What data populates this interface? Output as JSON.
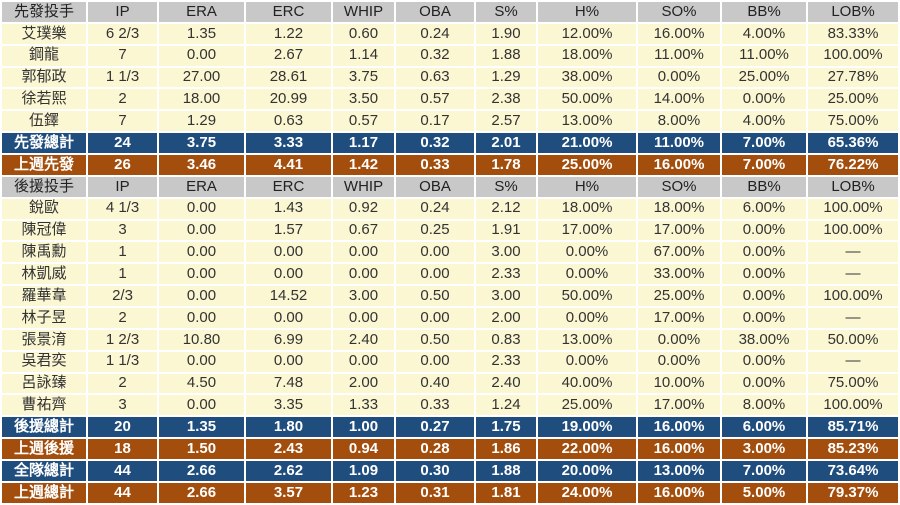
{
  "colors": {
    "header_bg": "#c8c8c8",
    "player_row_bg": "#fbf7d3",
    "total_row_bg": "#1f4d7d",
    "lastweek_row_bg": "#a34e0d",
    "separator": "#ffffff",
    "dark_text": "#333333",
    "light_text": "#ffffff"
  },
  "chart_data": {
    "type": "table",
    "sections": [
      {
        "title": "先發投手",
        "columns": [
          "IP",
          "ERA",
          "ERC",
          "WHIP",
          "OBA",
          "S%",
          "H%",
          "SO%",
          "BB%",
          "LOB%"
        ],
        "rows": [
          {
            "kind": "player",
            "name": "艾璞樂",
            "values": [
              "6 2/3",
              "1.35",
              "1.22",
              "0.60",
              "0.24",
              "1.90",
              "12.00%",
              "16.00%",
              "4.00%",
              "83.33%"
            ]
          },
          {
            "kind": "player",
            "name": "鋼龍",
            "values": [
              "7",
              "0.00",
              "2.67",
              "1.14",
              "0.32",
              "1.88",
              "18.00%",
              "11.00%",
              "11.00%",
              "100.00%"
            ]
          },
          {
            "kind": "player",
            "name": "郭郁政",
            "values": [
              "1 1/3",
              "27.00",
              "28.61",
              "3.75",
              "0.63",
              "1.29",
              "38.00%",
              "0.00%",
              "25.00%",
              "27.78%"
            ]
          },
          {
            "kind": "player",
            "name": "徐若熙",
            "values": [
              "2",
              "18.00",
              "20.99",
              "3.50",
              "0.57",
              "2.38",
              "50.00%",
              "14.00%",
              "0.00%",
              "25.00%"
            ]
          },
          {
            "kind": "player",
            "name": "伍鐸",
            "values": [
              "7",
              "1.29",
              "0.63",
              "0.57",
              "0.17",
              "2.57",
              "13.00%",
              "8.00%",
              "4.00%",
              "75.00%"
            ]
          },
          {
            "kind": "total",
            "name": "先發總計",
            "values": [
              "24",
              "3.75",
              "3.33",
              "1.17",
              "0.32",
              "2.01",
              "21.00%",
              "11.00%",
              "7.00%",
              "65.36%"
            ]
          },
          {
            "kind": "lastweek",
            "name": "上週先發",
            "values": [
              "26",
              "3.46",
              "4.41",
              "1.42",
              "0.33",
              "1.78",
              "25.00%",
              "16.00%",
              "7.00%",
              "76.22%"
            ]
          }
        ]
      },
      {
        "title": "後援投手",
        "columns": [
          "IP",
          "ERA",
          "ERC",
          "WHIP",
          "OBA",
          "S%",
          "H%",
          "SO%",
          "BB%",
          "LOB%"
        ],
        "rows": [
          {
            "kind": "player",
            "name": "銳歐",
            "values": [
              "4 1/3",
              "0.00",
              "1.43",
              "0.92",
              "0.24",
              "2.12",
              "18.00%",
              "18.00%",
              "6.00%",
              "100.00%"
            ]
          },
          {
            "kind": "player",
            "name": "陳冠偉",
            "values": [
              "3",
              "0.00",
              "1.57",
              "0.67",
              "0.25",
              "1.91",
              "17.00%",
              "17.00%",
              "0.00%",
              "100.00%"
            ]
          },
          {
            "kind": "player",
            "name": "陳禹勳",
            "values": [
              "1",
              "0.00",
              "0.00",
              "0.00",
              "0.00",
              "3.00",
              "0.00%",
              "67.00%",
              "0.00%",
              "—"
            ]
          },
          {
            "kind": "player",
            "name": "林凱威",
            "values": [
              "1",
              "0.00",
              "0.00",
              "0.00",
              "0.00",
              "2.33",
              "0.00%",
              "33.00%",
              "0.00%",
              "—"
            ]
          },
          {
            "kind": "player",
            "name": "羅華韋",
            "values": [
              "2/3",
              "0.00",
              "14.52",
              "3.00",
              "0.50",
              "3.00",
              "50.00%",
              "25.00%",
              "0.00%",
              "100.00%"
            ]
          },
          {
            "kind": "player",
            "name": "林子昱",
            "values": [
              "2",
              "0.00",
              "0.00",
              "0.00",
              "0.00",
              "2.00",
              "0.00%",
              "17.00%",
              "0.00%",
              "—"
            ]
          },
          {
            "kind": "player",
            "name": "張景淯",
            "values": [
              "1 2/3",
              "10.80",
              "6.99",
              "2.40",
              "0.50",
              "0.83",
              "13.00%",
              "0.00%",
              "38.00%",
              "50.00%"
            ]
          },
          {
            "kind": "player",
            "name": "吳君奕",
            "values": [
              "1 1/3",
              "0.00",
              "0.00",
              "0.00",
              "0.00",
              "2.33",
              "0.00%",
              "0.00%",
              "0.00%",
              "—"
            ]
          },
          {
            "kind": "player",
            "name": "呂詠臻",
            "values": [
              "2",
              "4.50",
              "7.48",
              "2.00",
              "0.40",
              "2.40",
              "40.00%",
              "10.00%",
              "0.00%",
              "75.00%"
            ]
          },
          {
            "kind": "player",
            "name": "曹祐齊",
            "values": [
              "3",
              "0.00",
              "3.35",
              "1.33",
              "0.33",
              "1.24",
              "25.00%",
              "17.00%",
              "8.00%",
              "100.00%"
            ]
          },
          {
            "kind": "total",
            "name": "後援總計",
            "values": [
              "20",
              "1.35",
              "1.80",
              "1.00",
              "0.27",
              "1.75",
              "19.00%",
              "16.00%",
              "6.00%",
              "85.71%"
            ]
          },
          {
            "kind": "lastweek",
            "name": "上週後援",
            "values": [
              "18",
              "1.50",
              "2.43",
              "0.94",
              "0.28",
              "1.86",
              "22.00%",
              "16.00%",
              "3.00%",
              "85.23%"
            ]
          },
          {
            "kind": "total",
            "name": "全隊總計",
            "values": [
              "44",
              "2.66",
              "2.62",
              "1.09",
              "0.30",
              "1.88",
              "20.00%",
              "13.00%",
              "7.00%",
              "73.64%"
            ]
          },
          {
            "kind": "lastweek",
            "name": "上週總計",
            "values": [
              "44",
              "2.66",
              "3.57",
              "1.23",
              "0.31",
              "1.81",
              "24.00%",
              "16.00%",
              "5.00%",
              "79.37%"
            ]
          }
        ]
      }
    ]
  }
}
